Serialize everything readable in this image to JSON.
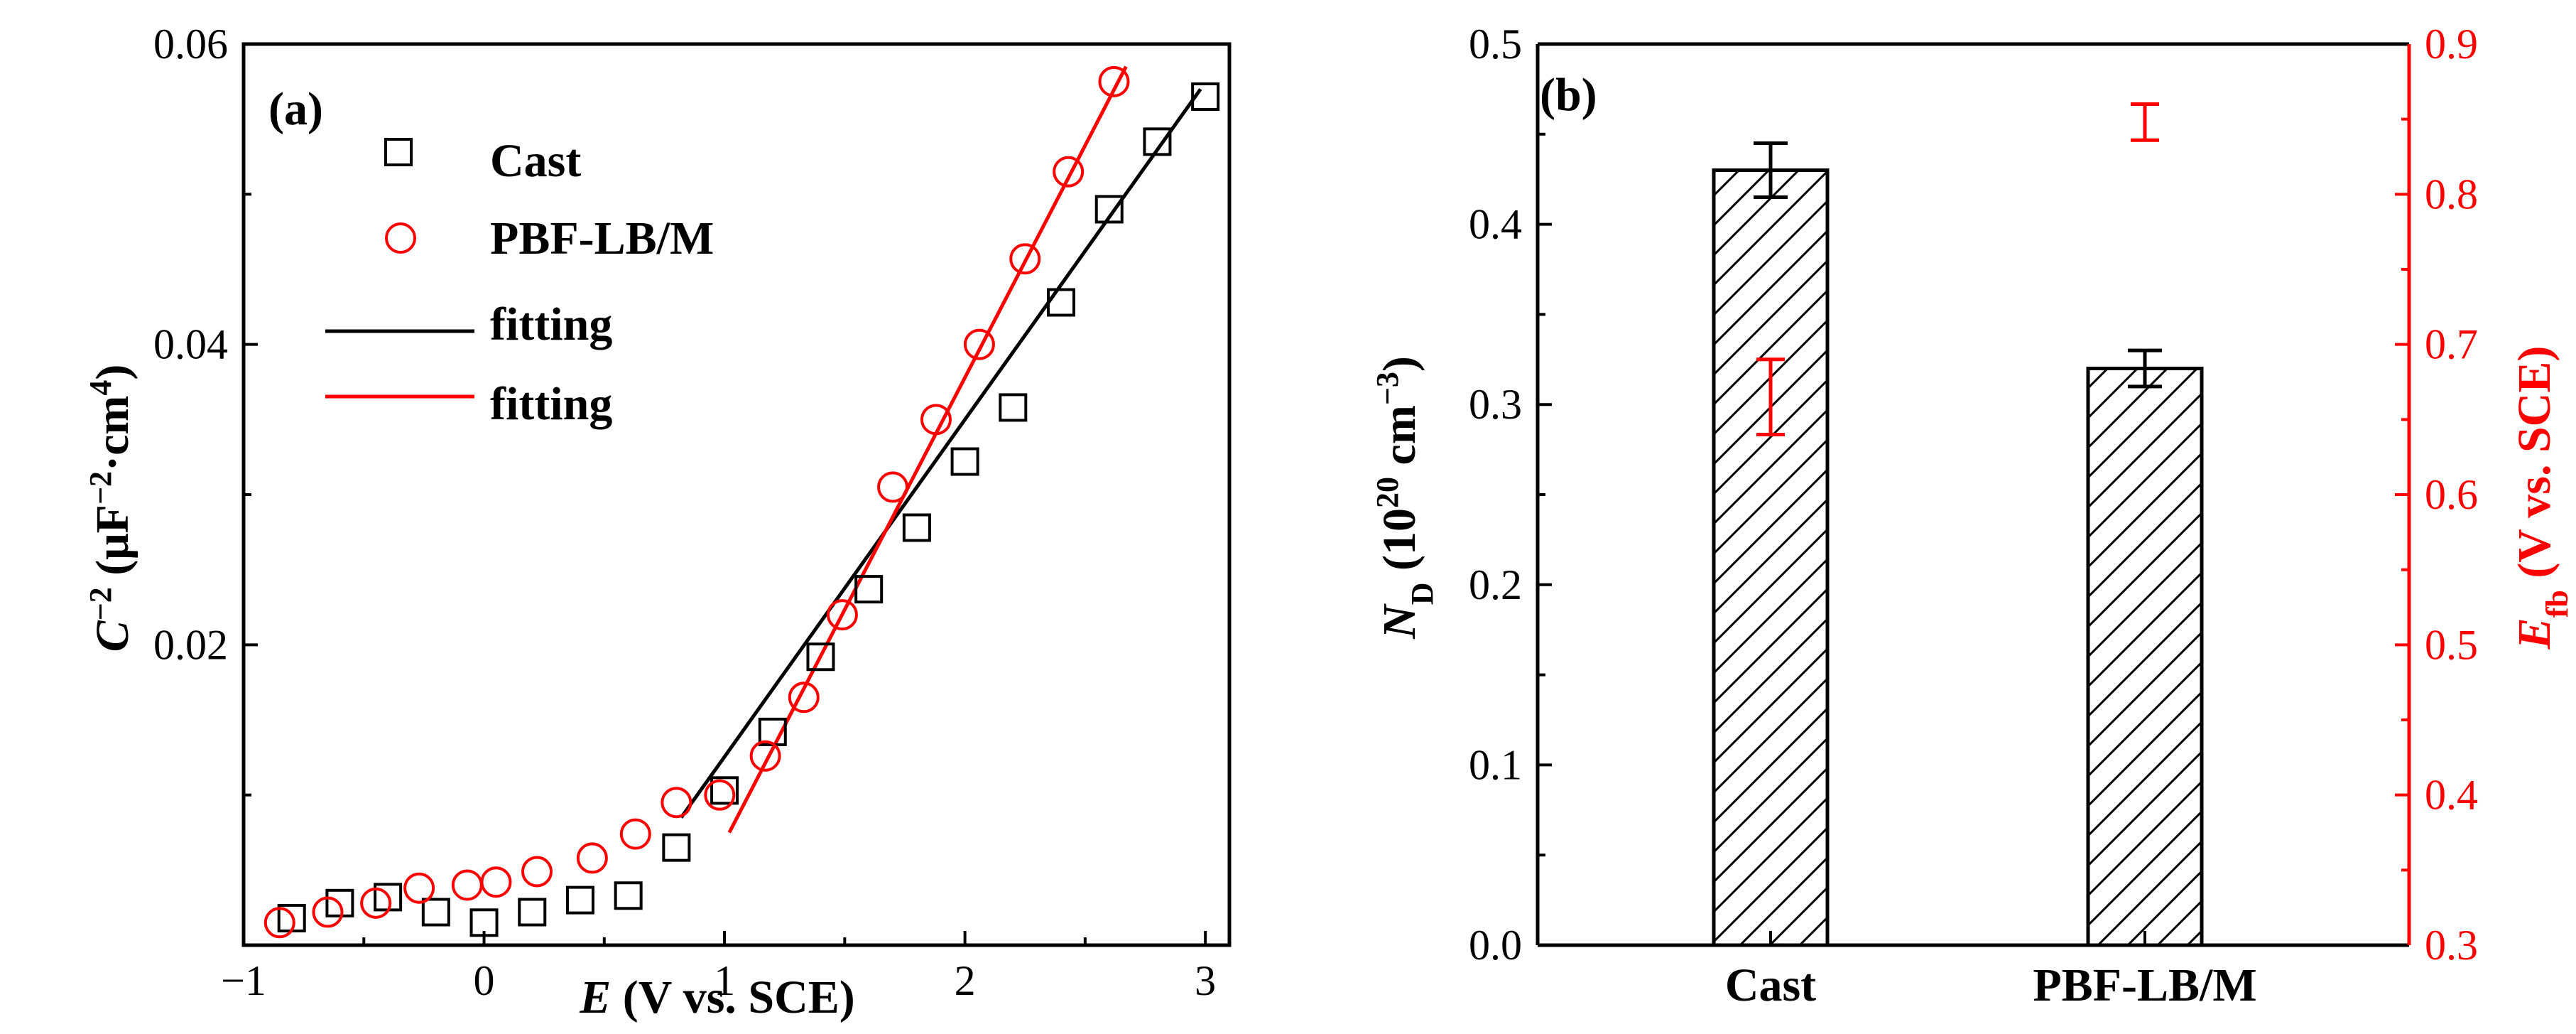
{
  "colors": {
    "black": "#000000",
    "red": "#ff0000",
    "background": "#ffffff"
  },
  "chart_data": [
    {
      "panel": "(a)",
      "type": "scatter",
      "xlabel": {
        "italic": "E",
        "rest": " (V vs. SCE)"
      },
      "ylabel": {
        "italic": "C",
        "sup": "−2",
        "rest": " (μF",
        "sup2": "−2",
        "rest2": "·cm",
        "sup3": "4",
        "rest3": ")"
      },
      "xlim": [
        -1,
        3.1
      ],
      "ylim": [
        0.0,
        0.06
      ],
      "xticks": [
        -1,
        0,
        1,
        2,
        3
      ],
      "xtick_labels": [
        "−1",
        "0",
        "1",
        "2",
        "3"
      ],
      "yticks": [
        0.02,
        0.04,
        0.06
      ],
      "ytick_labels": [
        "0.02",
        "0.04",
        "0.06"
      ],
      "series": [
        {
          "name": "Cast",
          "marker": "square",
          "color": "#000000",
          "x": [
            -0.8,
            -0.6,
            -0.4,
            -0.2,
            0.0,
            0.2,
            0.4,
            0.6,
            0.8,
            1.0,
            1.2,
            1.4,
            1.6,
            1.8,
            2.0,
            2.2,
            2.4,
            2.6,
            2.8,
            3.0
          ],
          "y": [
            0.0018,
            0.0028,
            0.0032,
            0.0022,
            0.0015,
            0.0022,
            0.003,
            0.0033,
            0.0065,
            0.0103,
            0.0142,
            0.0192,
            0.0237,
            0.0278,
            0.0322,
            0.0358,
            0.0428,
            0.049,
            0.0535,
            0.0565
          ]
        },
        {
          "name": "PBF-LB/M",
          "marker": "circle",
          "color": "#ff0000",
          "x": [
            -0.85,
            -0.65,
            -0.45,
            -0.27,
            -0.07,
            0.05,
            0.22,
            0.45,
            0.63,
            0.8,
            0.98,
            1.17,
            1.33,
            1.49,
            1.7,
            1.88,
            2.06,
            2.25,
            2.43,
            2.62
          ],
          "y": [
            0.0015,
            0.0022,
            0.0028,
            0.0038,
            0.004,
            0.0042,
            0.0049,
            0.0058,
            0.0074,
            0.0095,
            0.01,
            0.0126,
            0.0165,
            0.022,
            0.0305,
            0.035,
            0.04,
            0.0457,
            0.0515,
            0.0575
          ]
        },
        {
          "name": "fitting",
          "type": "line",
          "color": "#000000",
          "x": [
            0.82,
            2.98
          ],
          "y": [
            0.0085,
            0.057
          ]
        },
        {
          "name": "fitting",
          "type": "line",
          "color": "#ff0000",
          "x": [
            1.02,
            2.67
          ],
          "y": [
            0.0075,
            0.0585
          ]
        }
      ],
      "legend": "top-left"
    },
    {
      "panel": "(b)",
      "type": "bar",
      "categories": [
        "Cast",
        "PBF-LB/M"
      ],
      "ylabel_left": {
        "italic": "N",
        "sub": "D",
        "rest": " (10",
        "sup": "20",
        "rest2": " cm",
        "sup2": "−3",
        "rest3": ")"
      },
      "ylabel_right": {
        "italic": "E",
        "sub": "fb",
        "rest": " (V vs. SCE)"
      },
      "ylim_left": [
        0.0,
        0.5
      ],
      "yticks_left": [
        0.0,
        0.1,
        0.2,
        0.3,
        0.4,
        0.5
      ],
      "ytick_labels_left": [
        "0.0",
        "0.1",
        "0.2",
        "0.3",
        "0.4",
        "0.5"
      ],
      "ylim_right": [
        0.3,
        0.9
      ],
      "yticks_right": [
        0.3,
        0.4,
        0.5,
        0.6,
        0.7,
        0.8,
        0.9
      ],
      "ytick_labels_right": [
        "0.3",
        "0.4",
        "0.5",
        "0.6",
        "0.7",
        "0.8",
        "0.9"
      ],
      "series": [
        {
          "name": "ND",
          "axis": "left",
          "pattern": "hatched",
          "values": [
            0.43,
            0.32
          ],
          "errors": [
            0.015,
            0.01
          ]
        },
        {
          "name": "Efb",
          "axis": "right",
          "marker": "errorbar",
          "color": "#ff0000",
          "values": [
            0.665,
            0.848
          ],
          "errors": [
            0.025,
            0.012
          ]
        }
      ]
    }
  ]
}
